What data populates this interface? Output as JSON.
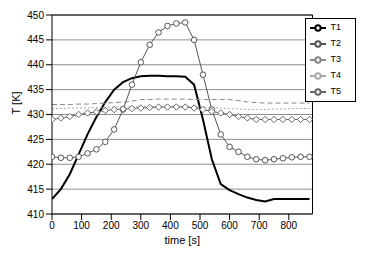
{
  "chart_data": {
    "type": "line",
    "x_label": "time [s]",
    "y_label": "T [K]",
    "x": [
      0,
      30,
      60,
      90,
      120,
      150,
      180,
      210,
      240,
      270,
      300,
      330,
      360,
      390,
      420,
      450,
      480,
      510,
      540,
      570,
      600,
      630,
      660,
      690,
      720,
      750,
      780,
      810,
      840,
      870
    ],
    "xlim": [
      0,
      880
    ],
    "xticks": [
      0,
      100,
      200,
      300,
      400,
      500,
      600,
      700,
      800
    ],
    "ylim": [
      410,
      450
    ],
    "yticks": [
      410,
      415,
      420,
      425,
      430,
      435,
      440,
      445,
      450
    ],
    "grid": true,
    "legend": "upper right",
    "series": [
      {
        "name": "T1",
        "color": "#000000",
        "line_style": "solid",
        "values": [
          413,
          415,
          418,
          422,
          426,
          429.5,
          432.5,
          435,
          436.5,
          437.3,
          437.7,
          437.8,
          437.8,
          437.7,
          437.7,
          437.6,
          436,
          429,
          421,
          416,
          414.8,
          414,
          413.3,
          412.8,
          412.5,
          413,
          413,
          413,
          413,
          413
        ]
      },
      {
        "name": "T2",
        "color": "#555555",
        "line_style": "solid",
        "marker": "circle",
        "values": [
          421.5,
          421.3,
          421.3,
          421.5,
          422.2,
          423,
          424.5,
          427,
          431,
          436,
          440.5,
          444,
          446.5,
          447.8,
          448.3,
          448.5,
          445,
          438,
          431,
          426,
          423.5,
          422.5,
          421.5,
          421,
          420.8,
          421,
          421.2,
          421.4,
          421.5,
          421.5
        ]
      },
      {
        "name": "T3",
        "color": "#888888",
        "line_style": "dashed",
        "values": [
          432,
          432,
          432,
          432.1,
          432.1,
          432.2,
          432.3,
          432.4,
          432.5,
          432.7,
          433,
          433,
          433.1,
          433.1,
          433.1,
          433.1,
          433,
          433,
          433,
          433,
          433,
          432.8,
          432.5,
          432.4,
          432.3,
          432.3,
          432.3,
          432.3,
          432.3,
          432.3
        ]
      },
      {
        "name": "T4",
        "color": "#aaaaaa",
        "line_style": "dotted",
        "values": [
          431.2,
          431.2,
          431.3,
          431.3,
          431.3,
          431.4,
          431.4,
          431.5,
          431.5,
          431.6,
          431.6,
          431.6,
          431.6,
          431.7,
          431.7,
          431.7,
          431.6,
          431.5,
          431.4,
          431.3,
          431.2,
          431.1,
          431,
          431,
          431,
          431.1,
          431.1,
          431.2,
          431.2,
          431.2
        ]
      },
      {
        "name": "T5",
        "color": "#666666",
        "line_style": "solid",
        "marker": "diamond",
        "values": [
          429,
          429.3,
          429.6,
          430,
          430.3,
          430.5,
          430.8,
          431,
          431.1,
          431.2,
          431.3,
          431.4,
          431.5,
          431.5,
          431.5,
          431.5,
          431.3,
          431,
          430.6,
          430.3,
          430,
          429.6,
          429.3,
          429,
          429,
          429,
          429,
          429,
          429,
          429
        ]
      }
    ]
  }
}
